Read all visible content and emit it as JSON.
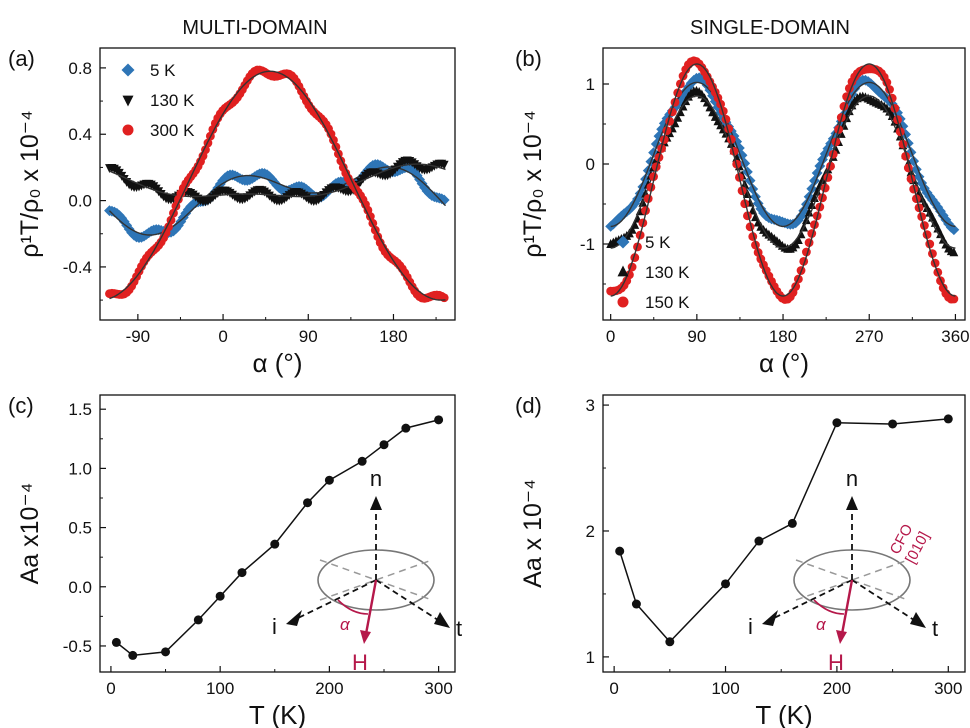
{
  "figure": {
    "header_left": "MULTI-DOMAIN",
    "header_right": "SINGLE-DOMAIN"
  },
  "chart_data": [
    {
      "id": "a",
      "panel_label": "(a)",
      "type": "scatter",
      "xlabel": "α (°)",
      "ylabel": "ρ¹T/ρ₀ x 10⁻⁴",
      "xlim": [
        -130,
        245
      ],
      "ylim": [
        -0.72,
        0.92
      ],
      "xticks": [
        -90,
        0,
        90,
        180
      ],
      "yticks": [
        -0.4,
        0.0,
        0.4,
        0.8
      ],
      "ytick_labels": [
        "-0.4",
        "0.0",
        "0.4",
        "0.8"
      ],
      "legend_position": "top-left",
      "series": [
        {
          "name": "5 K",
          "color": "#2e75b6",
          "marker": "diamond",
          "offset": 0.04,
          "terms": [
            [
              0.13,
              0,
              112
            ],
            [
              0.12,
              2,
              145
            ]
          ]
        },
        {
          "name": "130 K",
          "color": "#111111",
          "marker": "triangle-down",
          "offset": 0.09,
          "terms": [
            [
              -0.09,
              0,
              25
            ],
            [
              0.04,
              2,
              160
            ]
          ]
        },
        {
          "name": "300 K",
          "color": "#e02020",
          "marker": "circle",
          "offset": 0.08,
          "terms": [
            [
              0.69,
              0,
              50
            ],
            [
              0.01,
              2,
              0
            ]
          ]
        }
      ]
    },
    {
      "id": "b",
      "panel_label": "(b)",
      "type": "scatter",
      "xlabel": "α (°)",
      "ylabel": "ρ¹T/ρ₀ x 10⁻⁴",
      "xlim": [
        -8,
        370
      ],
      "ylim": [
        -1.95,
        1.45
      ],
      "xticks": [
        0,
        90,
        180,
        270,
        360
      ],
      "yticks": [
        -1,
        0,
        1
      ],
      "ytick_labels": [
        "-1",
        "0",
        "1"
      ],
      "legend_position": "bottom-left",
      "series": [
        {
          "name": "5 K",
          "color": "#2e75b6",
          "marker": "diamond",
          "offset": 0.12,
          "terms": [
            [
              0.9,
              2,
              45
            ]
          ]
        },
        {
          "name": "130 K",
          "color": "#111111",
          "marker": "triangle-up",
          "offset": -0.1,
          "terms": [
            [
              0.95,
              2,
              45
            ]
          ]
        },
        {
          "name": "150 K",
          "color": "#e02020",
          "marker": "circle",
          "offset": -0.2,
          "terms": [
            [
              1.45,
              2,
              45
            ]
          ]
        }
      ]
    },
    {
      "id": "c",
      "panel_label": "(c)",
      "type": "line",
      "xlabel": "T (K)",
      "ylabel": "Aa x10⁻⁴",
      "xlim": [
        -10,
        315
      ],
      "ylim": [
        -0.72,
        1.62
      ],
      "xticks": [
        0,
        100,
        200,
        300
      ],
      "yticks": [
        -0.5,
        0.0,
        0.5,
        1.0,
        1.5
      ],
      "ytick_labels": [
        "-0.5",
        "0.0",
        "0.5",
        "1.0",
        "1.5"
      ],
      "x": [
        5,
        20,
        50,
        80,
        100,
        120,
        150,
        180,
        200,
        230,
        250,
        270,
        300
      ],
      "y": [
        -0.47,
        -0.58,
        -0.55,
        -0.28,
        -0.08,
        0.12,
        0.36,
        0.71,
        0.9,
        1.06,
        1.2,
        1.34,
        1.41
      ],
      "inset": {
        "n": "n",
        "i": "i",
        "t": "t",
        "alpha": "α",
        "H": "H"
      }
    },
    {
      "id": "d",
      "panel_label": "(d)",
      "type": "line",
      "xlabel": "T (K)",
      "ylabel": "Aa x 10⁻⁴",
      "xlim": [
        -10,
        315
      ],
      "ylim": [
        0.88,
        3.08
      ],
      "xticks": [
        0,
        100,
        200,
        300
      ],
      "yticks": [
        1,
        2,
        3
      ],
      "ytick_labels": [
        "1",
        "2",
        "3"
      ],
      "x": [
        5,
        20,
        50,
        100,
        130,
        160,
        200,
        250,
        300
      ],
      "y": [
        1.84,
        1.42,
        1.12,
        1.58,
        1.92,
        2.06,
        2.86,
        2.85,
        2.89
      ],
      "inset": {
        "n": "n",
        "i": "i",
        "t": "t",
        "alpha": "α",
        "H": "H",
        "axis_line1": "CFO",
        "axis_line2": "[010]"
      }
    }
  ]
}
